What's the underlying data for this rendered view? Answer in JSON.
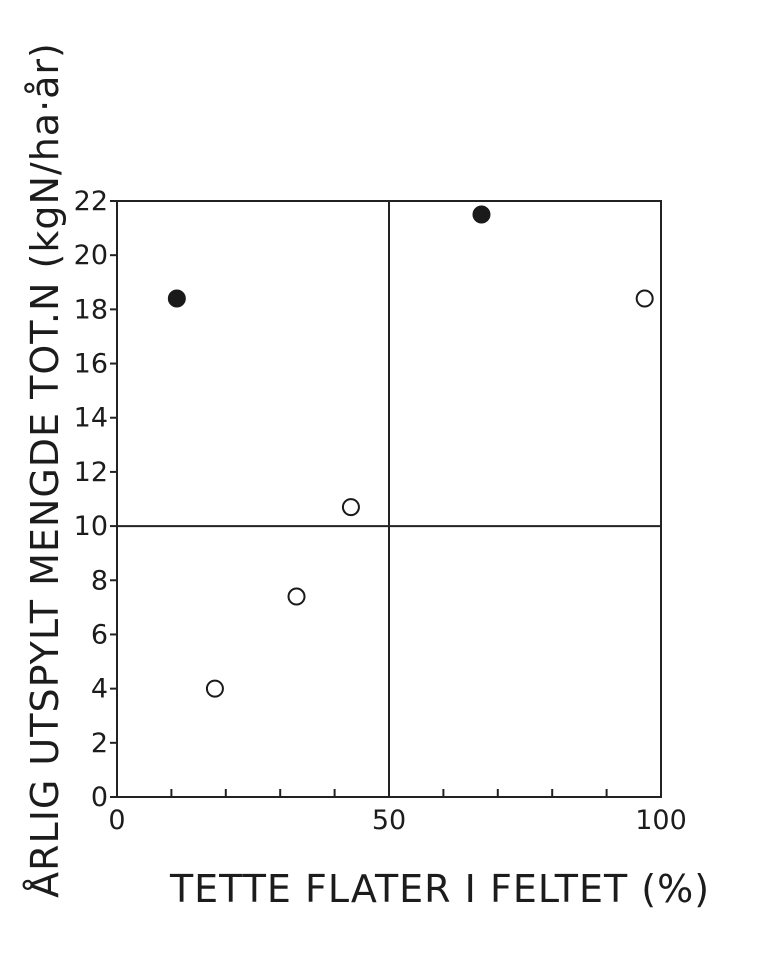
{
  "chart_data": {
    "type": "scatter",
    "title": "",
    "xlabel": "TETTE FLATER I FELTET (%)",
    "ylabel": "ÅRLIG UTSPYLT MENGDE TOT.N (kgN/ha·år)",
    "xlim": [
      0,
      100
    ],
    "ylim": [
      0,
      22
    ],
    "x_ticks": [
      0,
      50,
      100
    ],
    "y_ticks": [
      0,
      2,
      4,
      6,
      8,
      10,
      12,
      14,
      16,
      18,
      20,
      22
    ],
    "x_minor_tick_step": 10,
    "reference_lines": {
      "x": 50,
      "y": 10
    },
    "grid": false,
    "series": [
      {
        "marker": "filled-circle",
        "color": "#1a1a1a",
        "points": [
          {
            "x": 11,
            "y": 18.4
          },
          {
            "x": 67,
            "y": 21.5
          }
        ]
      },
      {
        "marker": "open-circle",
        "color": "#1a1a1a",
        "points": [
          {
            "x": 18,
            "y": 4.0
          },
          {
            "x": 33,
            "y": 7.4
          },
          {
            "x": 43,
            "y": 10.7
          },
          {
            "x": 97,
            "y": 18.4
          }
        ]
      }
    ]
  }
}
